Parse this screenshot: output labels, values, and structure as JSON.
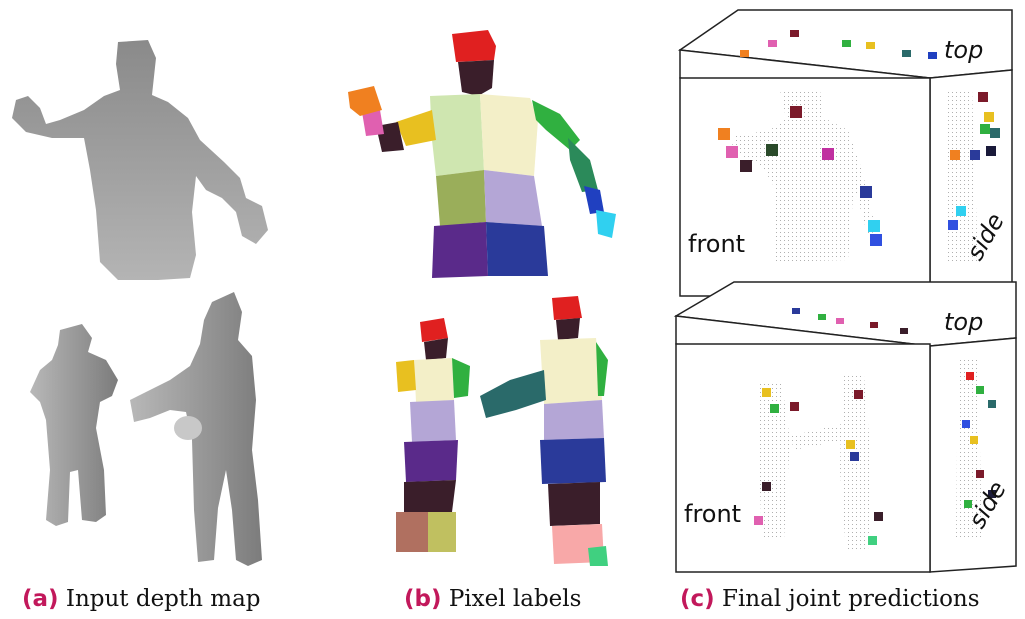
{
  "panels": [
    {
      "tag": "(a)",
      "caption": "Input depth map"
    },
    {
      "tag": "(b)",
      "caption": "Pixel labels"
    },
    {
      "tag": "(c)",
      "caption": "Final joint predictions"
    }
  ],
  "view_labels": {
    "top": "top",
    "front": "front",
    "side": "side"
  },
  "colors": {
    "caption_tag": "#c2185b",
    "depth_near": "#7a7a7a",
    "depth_far": "#b8b8b8",
    "head": "#e02020",
    "neck": "#3a1e2a",
    "torso_left": "#cfe6b0",
    "torso_right": "#f3efc8",
    "hip_left": "#9aae5a",
    "hip_right": "#b4a6d6",
    "leg_left": "#5a2a8a",
    "leg_right": "#2a3a9a",
    "arm_upper_a": "#e8c020",
    "arm_lower_a": "#e060b0",
    "hand_a": "#f08020",
    "arm_upper_b": "#30b040",
    "arm_lower_b": "#2040c0",
    "hand_b": "#30d0f0",
    "foot": "#40d080"
  }
}
